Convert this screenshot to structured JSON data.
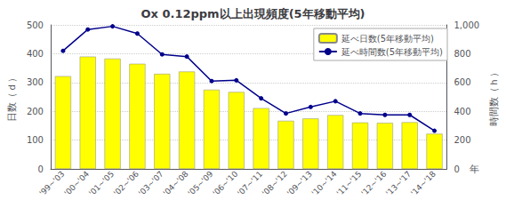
{
  "chart_data": {
    "type": "bar",
    "title": "Ox 0.12ppm以上出現頻度(5年移動平均)",
    "categories": [
      "'99~'03",
      "'00~'04",
      "'01~'05",
      "'02~'06",
      "'03~'07",
      "'04~'08",
      "'05~'09",
      "'06~'10",
      "'07~'11",
      "'08~'12",
      "'09~'13",
      "'10~'14",
      "'11~'15",
      "'12~'16",
      "'13~'17",
      "'14~'18"
    ],
    "series": [
      {
        "name": "延べ日数(5年移動平均)",
        "type": "bar",
        "color": "#ffff00",
        "values": [
          322,
          390,
          383,
          365,
          330,
          338,
          275,
          267,
          211,
          167,
          175,
          187,
          161,
          160,
          162,
          122
        ]
      },
      {
        "name": "延べ時間数(5年移動平均)",
        "type": "line",
        "axis": "y2",
        "color": "#00008B",
        "marker": "circle",
        "values": [
          820,
          968,
          990,
          940,
          795,
          780,
          610,
          615,
          490,
          385,
          430,
          470,
          385,
          375,
          375,
          265
        ]
      }
    ],
    "xlabel": "年",
    "ylabel": "日数（ｄ）",
    "y2label": "時間数（ｈ）",
    "ylim": [
      0,
      500
    ],
    "yticks": [
      0,
      100,
      200,
      300,
      400,
      500
    ],
    "y2lim": [
      0,
      1000
    ],
    "y2ticks": [
      0,
      200,
      400,
      600,
      800,
      1000
    ],
    "grid": true,
    "legend": "upper right"
  }
}
